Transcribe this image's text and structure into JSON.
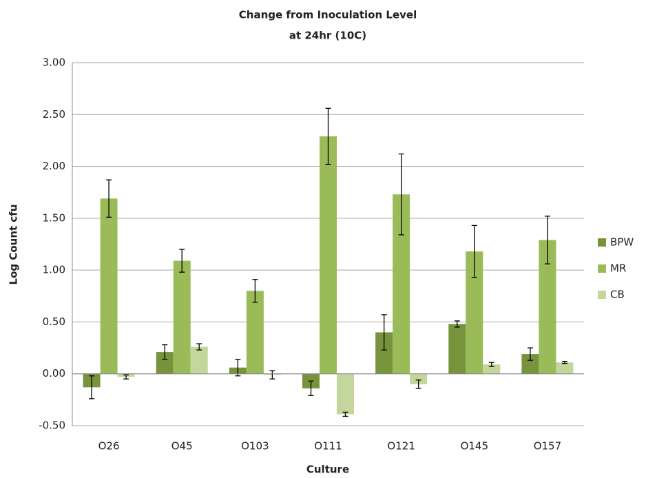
{
  "chart_data": {
    "type": "bar",
    "title": [
      "Change from Inoculation  Level",
      "at 24hr (10C)"
    ],
    "x_label": "Culture",
    "y_label": "Log Count cfu",
    "categories": [
      "O26",
      "O45",
      "O103",
      "O111",
      "O121",
      "O145",
      "O157"
    ],
    "series": [
      {
        "name": "BPW",
        "color": "#77933c",
        "values": [
          -0.13,
          0.21,
          0.06,
          -0.14,
          0.4,
          0.48,
          0.19
        ],
        "errors": [
          0.11,
          0.07,
          0.08,
          0.07,
          0.17,
          0.03,
          0.06
        ]
      },
      {
        "name": "MR",
        "color": "#9bbb59",
        "values": [
          1.69,
          1.09,
          0.8,
          2.29,
          1.73,
          1.18,
          1.29
        ],
        "errors": [
          0.18,
          0.11,
          0.11,
          0.27,
          0.39,
          0.25,
          0.23
        ]
      },
      {
        "name": "CB",
        "color": "#c3d69b",
        "values": [
          -0.03,
          0.26,
          -0.01,
          -0.39,
          -0.1,
          0.09,
          0.11
        ],
        "errors": [
          0.02,
          0.03,
          0.04,
          0.02,
          0.04,
          0.02,
          0.01
        ]
      }
    ],
    "ylim": [
      -0.5,
      3.0
    ],
    "yticks": [
      {
        "value": -0.5,
        "label": "-0.50"
      },
      {
        "value": 0,
        "label": "0.00"
      },
      {
        "value": 0.5,
        "label": "0.50"
      },
      {
        "value": 1.0,
        "label": "1.00"
      },
      {
        "value": 1.5,
        "label": "1.50"
      },
      {
        "value": 2.0,
        "label": "2.00"
      },
      {
        "value": 2.5,
        "label": "2.50"
      },
      {
        "value": 3.0,
        "label": "3.00"
      }
    ],
    "grid": true,
    "legend": "right"
  }
}
